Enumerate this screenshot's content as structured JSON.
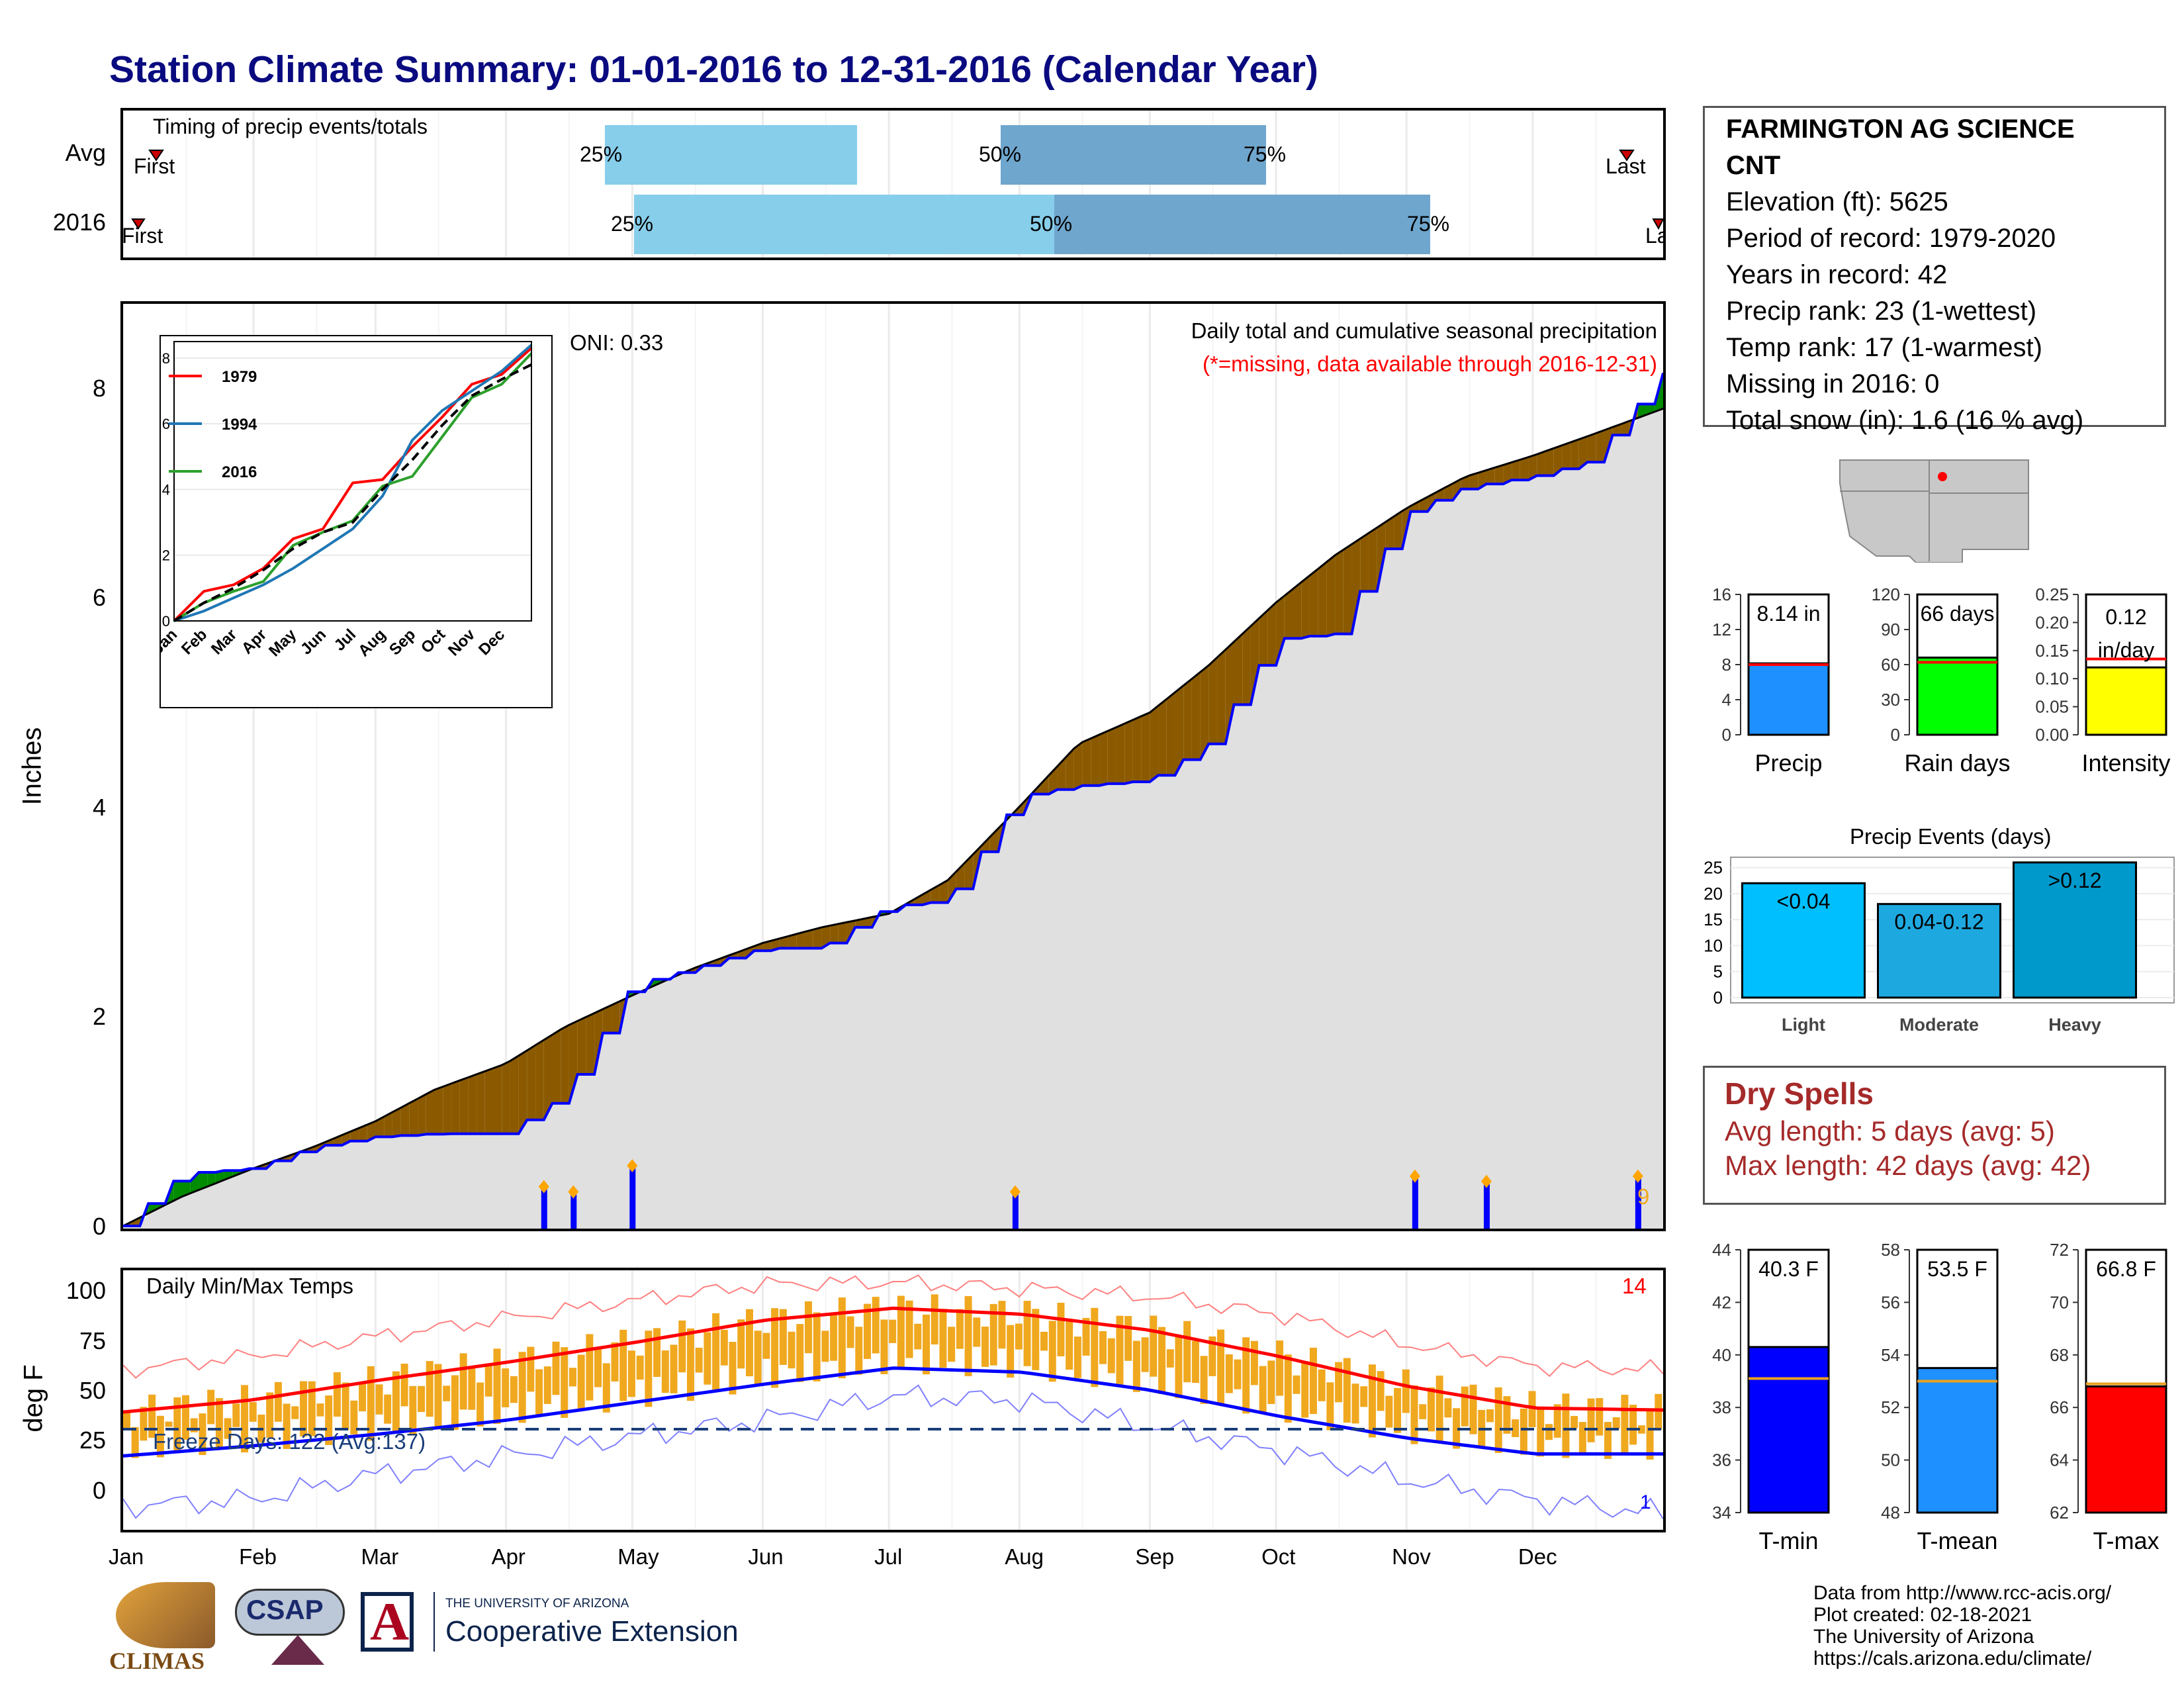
{
  "title": "Station Climate Summary: 01-01-2016 to 12-31-2016 (Calendar Year)",
  "timing": {
    "label": "Timing of precip events/totals",
    "rows": [
      {
        "name": "Avg",
        "first": "First",
        "p25": "25%",
        "p50": "50%",
        "p75": "75%",
        "last": "Last"
      },
      {
        "name": "2016",
        "first": "First",
        "p25": "25%",
        "p50": "50%",
        "p75": "75%",
        "last": "La"
      }
    ]
  },
  "station": {
    "name_line1": "FARMINGTON AG SCIENCE",
    "name_line2": "CNT",
    "elevation": "Elevation (ft): 5625",
    "period": "Period of record: 1979-2020",
    "years": "Years in record: 42",
    "precip_rank": "Precip rank: 23 (1-wettest)",
    "temp_rank": "Temp rank: 17 (1-warmest)",
    "missing": "Missing in 2016: 0",
    "snow": "Total snow (in): 1.6 (16 % avg)"
  },
  "precip_panel": {
    "ylabel": "Inches",
    "note1": "Daily total and cumulative seasonal precipitation",
    "note2": "(*=missing, data available through 2016-12-31)",
    "oni": "ONI: 0.33",
    "max_daily_label": "9"
  },
  "temp_panel": {
    "label": "Daily Min/Max Temps",
    "ylabel": "deg F",
    "freeze": "Freeze Days: 122 (Avg:137)",
    "count_high": "14",
    "count_low": "1"
  },
  "months": [
    "Jan",
    "Feb",
    "Mar",
    "Apr",
    "May",
    "Jun",
    "Jul",
    "Aug",
    "Sep",
    "Oct",
    "Nov",
    "Dec"
  ],
  "inset": {
    "months": [
      "Jan",
      "Feb",
      "Mar",
      "Apr",
      "May",
      "Jun",
      "Jul",
      "Aug",
      "Sep",
      "Oct",
      "Nov",
      "Dec"
    ],
    "legend": [
      "1979",
      "1994",
      "2016"
    ]
  },
  "dry_spells": {
    "title": "Dry Spells",
    "avg": "Avg length: 5 days (avg: 5)",
    "max": "Max length: 42 days (avg: 42)"
  },
  "precip_events": {
    "title": "Precip Events (days)"
  },
  "footer": {
    "line1": "Data from http://www.rcc-acis.org/",
    "line2": "Plot created: 02-18-2021",
    "line3": "The University of Arizona",
    "line4": "https://cals.arizona.edu/climate/"
  },
  "logos": {
    "climas": "CLIMAS",
    "csap": "CSAP",
    "ua_small": "THE UNIVERSITY OF ARIZONA",
    "ua_big": "Cooperative Extension"
  },
  "colors": {
    "title": "#0a0a80",
    "cum_2016": "#0000ff",
    "deficit": "#8B5A00",
    "surplus": "#008B00",
    "avg_fill": "#e0e0e0",
    "tmax": "#ff0000",
    "tmin": "#0000ff",
    "bars": "#f0a81f",
    "light_blue": "#87ceeb",
    "dark_blue": "#6fa6cd"
  },
  "chart_data": [
    {
      "type": "bar",
      "title": "Timing of precip events/totals",
      "categories": [
        "Avg",
        "2016"
      ],
      "series": [
        {
          "name": "25%",
          "values": [
            "Apr 28",
            "May 1"
          ]
        },
        {
          "name": "50%",
          "values": [
            "Jul 26",
            "Aug 1"
          ]
        },
        {
          "name": "75%",
          "values": [
            "Sep 26",
            "Nov 3"
          ]
        }
      ]
    },
    {
      "type": "area",
      "title": "Daily total and cumulative seasonal precipitation",
      "ylabel": "Inches",
      "ylim": [
        0,
        8.8
      ],
      "x": [
        "Jan 1",
        "Jan 15",
        "Feb 1",
        "Feb 15",
        "Mar 1",
        "Mar 15",
        "Apr 1",
        "Apr 15",
        "May 1",
        "May 15",
        "Jun 1",
        "Jun 15",
        "Jul 1",
        "Jul 15",
        "Aug 1",
        "Aug 15",
        "Sep 1",
        "Sep 15",
        "Oct 1",
        "Oct 15",
        "Nov 1",
        "Nov 15",
        "Dec 1",
        "Dec 15",
        "Dec 31"
      ],
      "series": [
        {
          "name": "Avg",
          "values": [
            0.0,
            0.28,
            0.55,
            0.75,
            1.0,
            1.3,
            1.55,
            1.9,
            2.2,
            2.45,
            2.7,
            2.85,
            2.98,
            3.3,
            4.0,
            4.6,
            4.9,
            5.35,
            5.95,
            6.4,
            6.85,
            7.15,
            7.35,
            7.55,
            7.8
          ]
        },
        {
          "name": "2016",
          "values": [
            0.0,
            0.5,
            0.55,
            0.75,
            0.85,
            0.88,
            0.88,
            1.25,
            2.3,
            2.45,
            2.65,
            2.65,
            3.05,
            3.1,
            4.1,
            4.2,
            4.25,
            4.6,
            5.6,
            5.65,
            6.8,
            7.05,
            7.15,
            7.3,
            8.14
          ]
        }
      ],
      "daily_events": [
        {
          "date": "Apr 10",
          "value": 0.35
        },
        {
          "date": "Apr 17",
          "value": 0.3
        },
        {
          "date": "May 1",
          "value": 0.55
        },
        {
          "date": "Jul 31",
          "value": 0.3
        },
        {
          "date": "Nov 3",
          "value": 0.45
        },
        {
          "date": "Nov 20",
          "value": 0.4
        },
        {
          "date": "Dec 26",
          "value": 0.45
        }
      ]
    },
    {
      "type": "line",
      "title": "Inset cumulative precipitation",
      "ylim": [
        0,
        8.5
      ],
      "x": [
        "Jan",
        "Feb",
        "Mar",
        "Apr",
        "May",
        "Jun",
        "Jul",
        "Aug",
        "Sep",
        "Oct",
        "Nov",
        "Dec",
        "End"
      ],
      "series": [
        {
          "name": "1979",
          "values": [
            0.0,
            0.9,
            1.1,
            1.6,
            2.5,
            2.8,
            4.2,
            4.3,
            5.3,
            6.2,
            7.2,
            7.5,
            8.3
          ]
        },
        {
          "name": "1994",
          "values": [
            0.0,
            0.3,
            0.7,
            1.1,
            1.6,
            2.2,
            2.8,
            3.8,
            5.5,
            6.4,
            7.0,
            7.6,
            8.4
          ]
        },
        {
          "name": "2016",
          "values": [
            0.0,
            0.55,
            0.9,
            1.2,
            2.3,
            2.7,
            3.05,
            4.1,
            4.4,
            5.6,
            6.8,
            7.2,
            8.14
          ]
        },
        {
          "name": "Avg",
          "values": [
            0.0,
            0.55,
            1.0,
            1.55,
            2.2,
            2.7,
            3.0,
            4.0,
            4.9,
            5.95,
            6.85,
            7.35,
            7.8
          ]
        }
      ]
    },
    {
      "type": "line",
      "title": "Daily Min/Max Temps",
      "ylabel": "deg F",
      "ylim": [
        -20,
        110
      ],
      "x": [
        "Jan",
        "Feb",
        "Mar",
        "Apr",
        "May",
        "Jun",
        "Jul",
        "Aug",
        "Sep",
        "Oct",
        "Nov",
        "Dec",
        "End"
      ],
      "series": [
        {
          "name": "Avg Tmax",
          "values": [
            39,
            45,
            55,
            64,
            74,
            85,
            91,
            88,
            80,
            67,
            52,
            41,
            40
          ]
        },
        {
          "name": "Avg Tmin",
          "values": [
            17,
            22,
            28,
            35,
            44,
            53,
            61,
            59,
            50,
            37,
            26,
            18,
            18
          ]
        },
        {
          "name": "Record high",
          "values": [
            60,
            67,
            77,
            86,
            95,
            103,
            104,
            101,
            97,
            88,
            73,
            62,
            60
          ]
        },
        {
          "name": "Record low",
          "values": [
            -8,
            -5,
            8,
            17,
            27,
            35,
            47,
            45,
            32,
            20,
            5,
            -5,
            -12
          ]
        }
      ]
    },
    {
      "type": "bar",
      "title": "Precip",
      "categories": [
        "Precip"
      ],
      "values": [
        8.14
      ],
      "ylim": [
        0,
        16
      ],
      "average": 8.0
    },
    {
      "type": "bar",
      "title": "Rain days",
      "categories": [
        "Rain days"
      ],
      "values": [
        66
      ],
      "ylim": [
        0,
        120
      ],
      "average": 62
    },
    {
      "type": "bar",
      "title": "Intensity",
      "categories": [
        "Intensity"
      ],
      "values": [
        0.12
      ],
      "ylim": [
        0,
        0.25
      ],
      "average": 0.135
    },
    {
      "type": "bar",
      "title": "Precip Events (days)",
      "categories": [
        "Light",
        "Moderate",
        "Heavy"
      ],
      "values": [
        22,
        18,
        26
      ],
      "ylim": [
        0,
        27
      ],
      "bar_labels": [
        "<0.04",
        "0.04-0.12",
        ">0.12"
      ]
    },
    {
      "type": "bar",
      "title": "T-min",
      "categories": [
        "T-min"
      ],
      "values": [
        40.3
      ],
      "ylim": [
        34,
        44
      ],
      "average": 39.1
    },
    {
      "type": "bar",
      "title": "T-mean",
      "categories": [
        "T-mean"
      ],
      "values": [
        53.5
      ],
      "ylim": [
        48,
        58
      ],
      "average": 53.0
    },
    {
      "type": "bar",
      "title": "T-max",
      "categories": [
        "T-max"
      ],
      "values": [
        66.8
      ],
      "ylim": [
        62,
        72
      ],
      "average": 66.9
    }
  ],
  "mini_labels": {
    "precip": {
      "value": "8.14 in",
      "name": "Precip",
      "ticks": [
        "0",
        "4",
        "8",
        "12",
        "16"
      ]
    },
    "rain": {
      "value": "66 days",
      "name": "Rain days",
      "ticks": [
        "0",
        "30",
        "60",
        "90",
        "120"
      ]
    },
    "intensity": {
      "value1": "0.12",
      "value2": "in/day",
      "name": "Intensity",
      "ticks": [
        "0.00",
        "0.05",
        "0.10",
        "0.15",
        "0.20",
        "0.25"
      ]
    },
    "events": {
      "ticks": [
        "0",
        "5",
        "10",
        "15",
        "20",
        "25"
      ],
      "names": [
        "Light",
        "Moderate",
        "Heavy"
      ],
      "labels": [
        "<0.04",
        "0.04-0.12",
        ">0.12"
      ]
    },
    "tmin": {
      "value": "40.3 F",
      "name": "T-min",
      "ticks": [
        "34",
        "36",
        "38",
        "40",
        "42",
        "44"
      ]
    },
    "tmean": {
      "value": "53.5 F",
      "name": "T-mean",
      "ticks": [
        "48",
        "50",
        "52",
        "54",
        "56",
        "58"
      ]
    },
    "tmax": {
      "value": "66.8 F",
      "name": "T-max",
      "ticks": [
        "62",
        "64",
        "66",
        "68",
        "70",
        "72"
      ]
    }
  }
}
